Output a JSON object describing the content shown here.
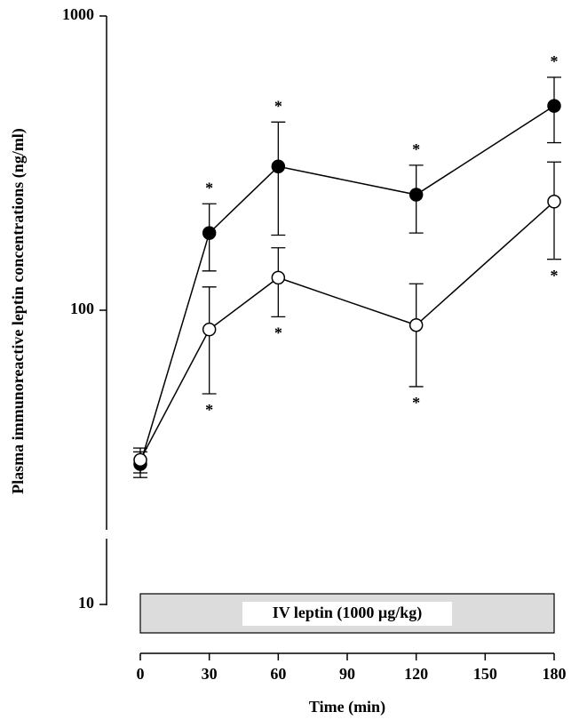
{
  "chart_data": {
    "type": "line",
    "xlabel": "Time (min)",
    "ylabel": "Plasma immunoreactive leptin concentrations (ng/ml)",
    "x": [
      0,
      30,
      60,
      120,
      180
    ],
    "xlim": [
      0,
      180
    ],
    "xticks": [
      0,
      30,
      60,
      90,
      120,
      150,
      180
    ],
    "ylim": [
      10,
      1000
    ],
    "yticks": [
      10,
      100,
      1000
    ],
    "log_y": true,
    "series": [
      {
        "name": "filled",
        "color": "#000000",
        "marker_fill": "#000000",
        "values": [
          30,
          183,
          308,
          247,
          495
        ],
        "errors": [
          3,
          47,
          128,
          64,
          124
        ]
      },
      {
        "name": "open",
        "color": "#000000",
        "marker_fill": "#ffffff",
        "values": [
          31,
          86,
          129,
          89,
          234
        ],
        "errors": [
          3,
          34,
          34,
          34,
          85
        ]
      }
    ],
    "annotations": [
      {
        "text": "*",
        "x": 30,
        "series": 0,
        "side": "above"
      },
      {
        "text": "*",
        "x": 60,
        "series": 0,
        "side": "above"
      },
      {
        "text": "*",
        "x": 120,
        "series": 0,
        "side": "above"
      },
      {
        "text": "*",
        "x": 180,
        "series": 0,
        "side": "above"
      },
      {
        "text": "*",
        "x": 30,
        "series": 1,
        "side": "below"
      },
      {
        "text": "*",
        "x": 60,
        "series": 1,
        "side": "below"
      },
      {
        "text": "*",
        "x": 120,
        "series": 1,
        "side": "below"
      },
      {
        "text": "*",
        "x": 180,
        "series": 1,
        "side": "below"
      }
    ],
    "shaded_bar": {
      "label": "IV leptin (1000 µg/kg)",
      "x": [
        0,
        180
      ],
      "color": "#dcdcdc"
    }
  }
}
